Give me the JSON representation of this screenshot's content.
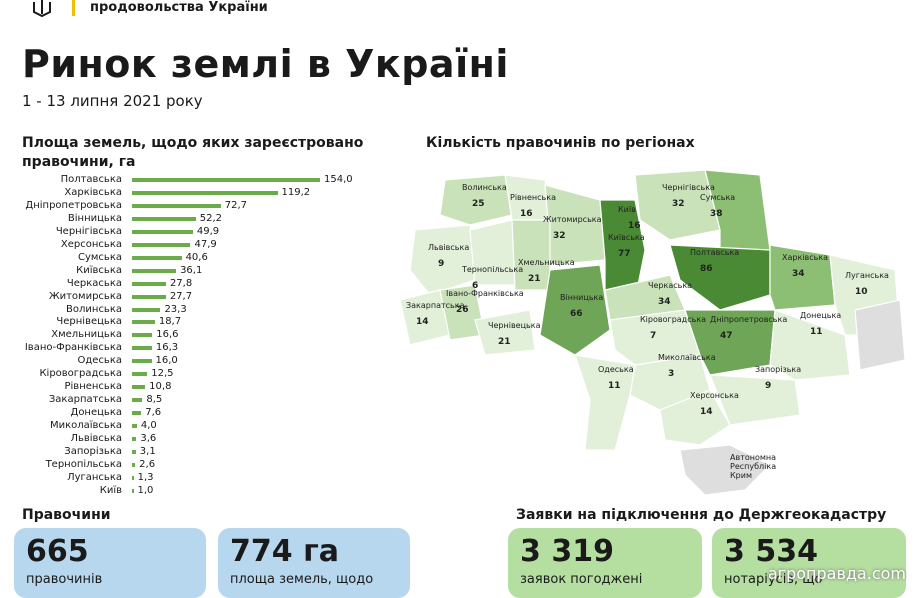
{
  "header": {
    "org": "продовольства України"
  },
  "title": "Ринок землі в Україні",
  "subtitle": "1 - 13 липня 2021 року",
  "left_section_title_1": "Площа земель, щодо яких зареєстровано",
  "left_section_title_2": "правочини, га",
  "map_title": "Кількість правочинів по регіонах",
  "chart_data": {
    "type": "bar",
    "title": "Площа земель, щодо яких зареєстровано правочини, га",
    "orientation": "horizontal",
    "categories": [
      "Полтавська",
      "Харківська",
      "Дніпропетровська",
      "Вінницька",
      "Чернігівська",
      "Херсонська",
      "Сумська",
      "Київська",
      "Черкаська",
      "Житомирська",
      "Волинська",
      "Чернівецька",
      "Хмельницька",
      "Івано-Франківська",
      "Одеська",
      "Кіровоградська",
      "Рівненська",
      "Закарпатська",
      "Донецька",
      "Миколаївська",
      "Львівська",
      "Запорізька",
      "Тернопільська",
      "Луганська",
      "Київ"
    ],
    "values": [
      154.0,
      119.2,
      72.7,
      52.2,
      49.9,
      47.9,
      40.6,
      36.1,
      27.8,
      27.7,
      23.3,
      18.7,
      16.6,
      16.3,
      16.0,
      12.5,
      10.8,
      8.5,
      7.6,
      4.0,
      3.6,
      3.1,
      2.6,
      1.3,
      1.0
    ],
    "value_labels": [
      "154,0",
      "119,2",
      "72,7",
      "52,2",
      "49,9",
      "47,9",
      "40,6",
      "36,1",
      "27,8",
      "27,7",
      "23,3",
      "18,7",
      "16,6",
      "16,3",
      "16,0",
      "12,5",
      "10,8",
      "8,5",
      "7,6",
      "4,0",
      "3,6",
      "3,1",
      "2,6",
      "1,3",
      "1,0"
    ],
    "bar_color": "#6bab4a",
    "xlim": [
      0,
      154.0
    ]
  },
  "map_regions": [
    {
      "name": "Волинська",
      "value": "25"
    },
    {
      "name": "Рівненська",
      "value": "16"
    },
    {
      "name": "Житомирська",
      "value": "32"
    },
    {
      "name": "Київ",
      "value": "16"
    },
    {
      "name": "Чернігівська",
      "value": "32"
    },
    {
      "name": "Сумська",
      "value": "38"
    },
    {
      "name": "Львівська",
      "value": "9"
    },
    {
      "name": "Тернопільська",
      "value": "6"
    },
    {
      "name": "Хмельницька",
      "value": "21"
    },
    {
      "name": "Київська",
      "value": "77"
    },
    {
      "name": "Полтавська",
      "value": "86"
    },
    {
      "name": "Харківська",
      "value": "34"
    },
    {
      "name": "Луганська",
      "value": "10"
    },
    {
      "name": "Закарпатська",
      "value": "14"
    },
    {
      "name": "Івано-Франківська",
      "value": "26"
    },
    {
      "name": "Чернівецька",
      "value": "21"
    },
    {
      "name": "Вінницька",
      "value": "66"
    },
    {
      "name": "Черкаська",
      "value": "34"
    },
    {
      "name": "Кіровоградська",
      "value": "7"
    },
    {
      "name": "Дніпропетровська",
      "value": "47"
    },
    {
      "name": "Донецька",
      "value": "11"
    },
    {
      "name": "Миколаївська",
      "value": "3"
    },
    {
      "name": "Запорізька",
      "value": "9"
    },
    {
      "name": "Одеська",
      "value": "11"
    },
    {
      "name": "Херсонська",
      "value": "14"
    },
    {
      "name": "Автономна Республіка Крим",
      "value": ""
    }
  ],
  "bottom_left_title": "Правочини",
  "bottom_right_title": "Заявки на підключення до Держгеокадастру",
  "cards": [
    {
      "num": "665",
      "cap": "правочинів",
      "color": "#b7d7ee"
    },
    {
      "num": "774 га",
      "cap": "площа земель, щодо",
      "color": "#b7d7ee"
    },
    {
      "num": "3 319",
      "cap": "заявок погоджені",
      "color": "#b5dfa0"
    },
    {
      "num": "3 534",
      "cap": "нотаріусів, що",
      "color": "#b5dfa0"
    }
  ],
  "watermark": "агроправда.com",
  "colors": {
    "dark_green": "#4b8a35",
    "mid_green": "#8cbf73",
    "light_green": "#c9e2ba",
    "pale_green": "#e2efd9",
    "grey": "#dedede"
  }
}
